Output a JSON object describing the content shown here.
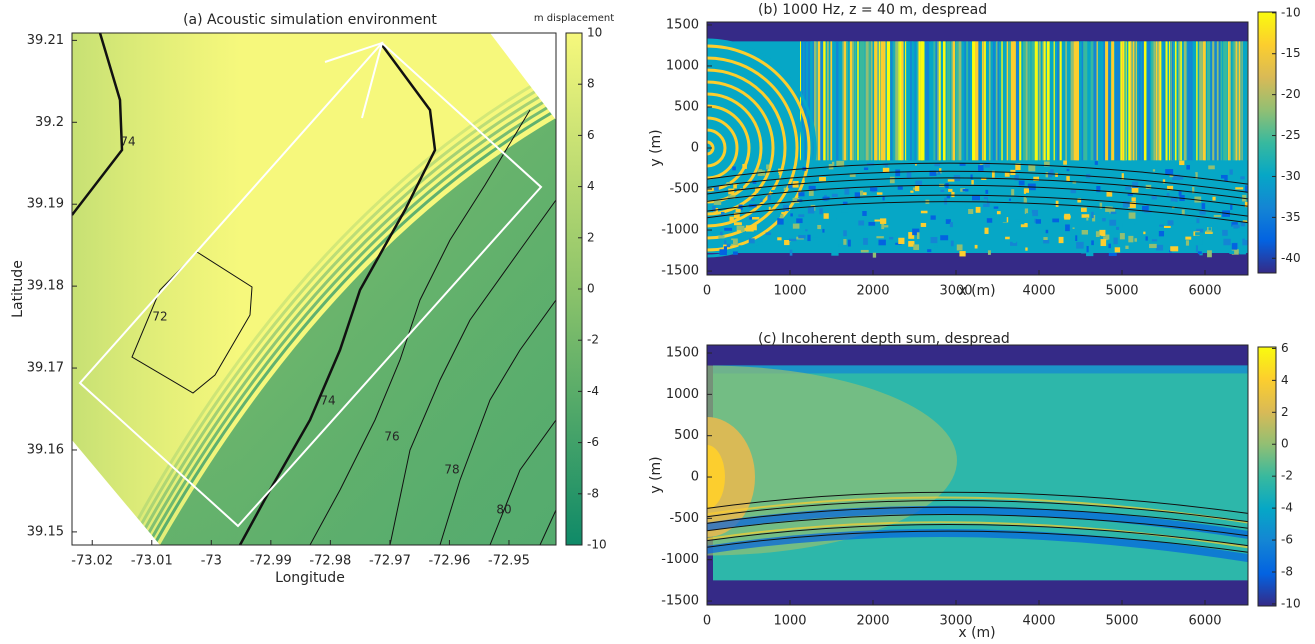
{
  "chart_data": [
    {
      "type": "contour",
      "title": "(a) Acoustic simulation environment",
      "xlabel": "Longitude",
      "ylabel": "Latitude",
      "xlim": [
        -73.0234,
        -72.9421
      ],
      "xticks": [
        -73.02,
        -73.01,
        -73,
        -72.99,
        -72.98,
        -72.97,
        -72.96,
        -72.95
      ],
      "ylim": [
        39.1484,
        39.2109
      ],
      "yticks": [
        39.15,
        39.16,
        39.17,
        39.18,
        39.19,
        39.2,
        39.21
      ],
      "colorbar_label": "m displacement",
      "clim": [
        -10,
        10
      ],
      "cticks": [
        -10,
        -8,
        -6,
        -4,
        -2,
        0,
        2,
        4,
        6,
        8,
        10
      ],
      "colormap": [
        "#0f8a68",
        "#8cc36a",
        "#f6f87c"
      ],
      "contour_labels": [
        74,
        72,
        74,
        76,
        78,
        80
      ]
    },
    {
      "type": "heatmap",
      "title": "(b)  1000 Hz, z = 40 m, despread",
      "xlabel": "x (m)",
      "ylabel": "y (m)",
      "xlim": [
        0,
        6518
      ],
      "xticks": [
        0,
        1000,
        2000,
        3000,
        4000,
        5000,
        6000
      ],
      "ylim": [
        -1548,
        1536
      ],
      "yticks": [
        -1500,
        -1000,
        -500,
        0,
        500,
        1000,
        1500
      ],
      "clim": [
        -41.8,
        -9.9
      ],
      "cticks": [
        -40,
        -35,
        -30,
        -25,
        -20,
        -15,
        -10
      ],
      "colormap": [
        "#352a87",
        "#0363e1",
        "#1485d4",
        "#06a7c6",
        "#38b99e",
        "#92bf73",
        "#d9ba56",
        "#fcce2e",
        "#f9fb0e"
      ]
    },
    {
      "type": "heatmap",
      "title": "(c)  Incoherent depth sum, despread",
      "xlabel": "x (m)",
      "ylabel": "y (m)",
      "xlim": [
        0,
        6518
      ],
      "xticks": [
        0,
        1000,
        2000,
        3000,
        4000,
        5000,
        6000
      ],
      "ylim": [
        -1548,
        1597
      ],
      "yticks": [
        -1500,
        -1000,
        -500,
        0,
        500,
        1000,
        1500
      ],
      "clim": [
        -10.13,
        6.09
      ],
      "cticks": [
        -10,
        -8,
        -6,
        -4,
        -2,
        0,
        2,
        4,
        6
      ],
      "colormap": [
        "#352a87",
        "#0363e1",
        "#1485d4",
        "#06a7c6",
        "#38b99e",
        "#92bf73",
        "#d9ba56",
        "#fcce2e",
        "#f9fb0e"
      ]
    }
  ]
}
